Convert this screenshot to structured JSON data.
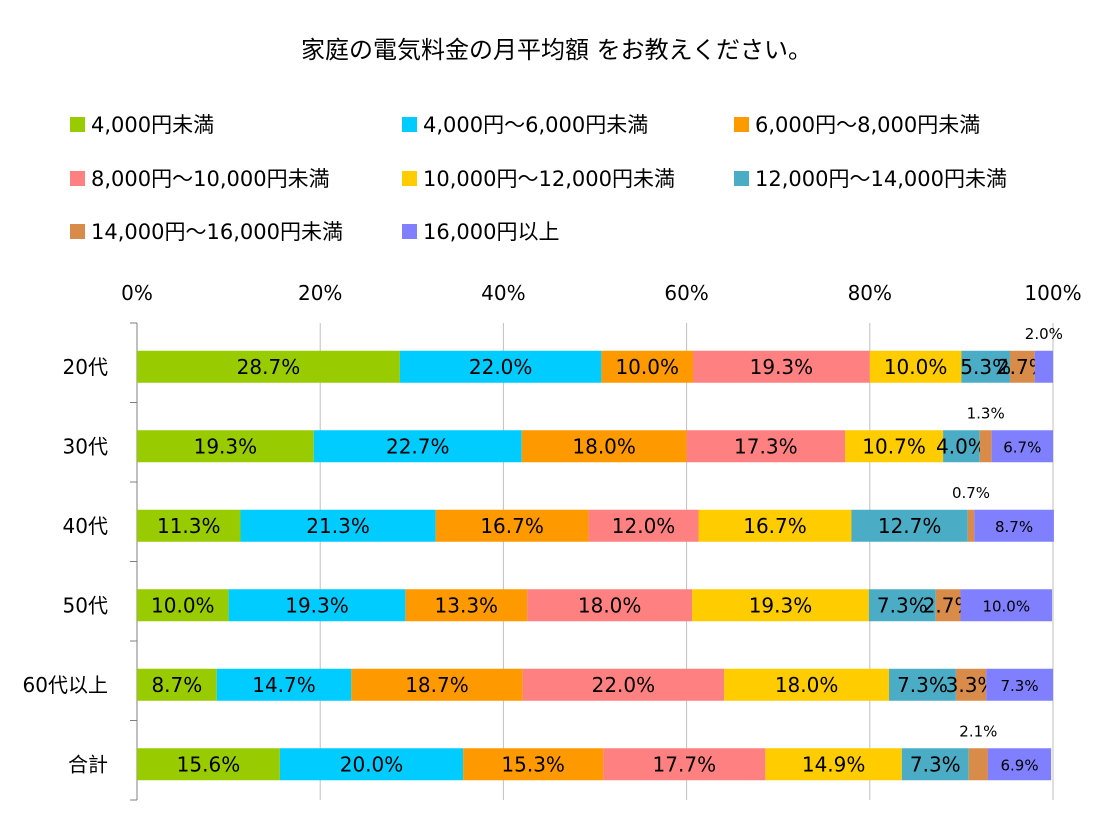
{
  "chart_data": {
    "type": "bar",
    "orientation": "horizontal",
    "stacked": "percent",
    "title": "家庭の電気料金の月平均額 をお教えください。",
    "categories": [
      "20代",
      "30代",
      "40代",
      "50代",
      "60代以上",
      "合計"
    ],
    "xlim": [
      0,
      100
    ],
    "x_ticks": [
      "0%",
      "20%",
      "40%",
      "60%",
      "80%",
      "100%"
    ],
    "grid": "vertical",
    "legend_position": "top",
    "series": [
      {
        "name": "4,000円未満",
        "color": "#99CC00",
        "values": [
          28.7,
          19.3,
          11.3,
          10.0,
          8.7,
          15.6
        ],
        "labels": [
          "28.7%",
          "19.3%",
          "11.3%",
          "10.0%",
          "8.7%",
          "15.6%"
        ]
      },
      {
        "name": "4,000円～6,000円未満",
        "color": "#00CCFF",
        "values": [
          22.0,
          22.7,
          21.3,
          19.3,
          14.7,
          20.0
        ],
        "labels": [
          "22.0%",
          "22.7%",
          "21.3%",
          "19.3%",
          "14.7%",
          "20.0%"
        ]
      },
      {
        "name": "6,000円～8,000円未満",
        "color": "#FF9900",
        "values": [
          10.0,
          18.0,
          16.7,
          13.3,
          18.7,
          15.3
        ],
        "labels": [
          "10.0%",
          "18.0%",
          "16.7%",
          "13.3%",
          "18.7%",
          "15.3%"
        ]
      },
      {
        "name": "8,000円～10,000円未満",
        "color": "#FF8080",
        "values": [
          19.3,
          17.3,
          12.0,
          18.0,
          22.0,
          17.7
        ],
        "labels": [
          "19.3%",
          "17.3%",
          "12.0%",
          "18.0%",
          "22.0%",
          "17.7%"
        ]
      },
      {
        "name": "10,000円～12,000円未満",
        "color": "#FFCC00",
        "values": [
          10.0,
          10.7,
          16.7,
          19.3,
          18.0,
          14.9
        ],
        "labels": [
          "10.0%",
          "10.7%",
          "16.7%",
          "19.3%",
          "18.0%",
          "14.9%"
        ]
      },
      {
        "name": "12,000円～14,000円未満",
        "color": "#4BACC6",
        "values": [
          5.3,
          4.0,
          12.7,
          7.3,
          7.3,
          7.3
        ],
        "labels": [
          "5.3%",
          "4.0%",
          "12.7%",
          "7.3%",
          "7.3%",
          "7.3%"
        ]
      },
      {
        "name": "14,000円～16,000円未満",
        "color": "#D98B4A",
        "values": [
          2.7,
          1.3,
          0.7,
          2.7,
          3.3,
          2.1
        ],
        "labels": [
          "2.7%",
          "1.3%",
          "0.7%",
          "2.7%",
          "3.3%",
          "2.1%"
        ]
      },
      {
        "name": "16,000円以上",
        "color": "#8080FF",
        "values": [
          2.0,
          6.7,
          8.7,
          10.0,
          7.3,
          6.9
        ],
        "labels": [
          "2.0%",
          "6.7%",
          "8.7%",
          "10.0%",
          "7.3%",
          "6.9%"
        ]
      }
    ]
  }
}
